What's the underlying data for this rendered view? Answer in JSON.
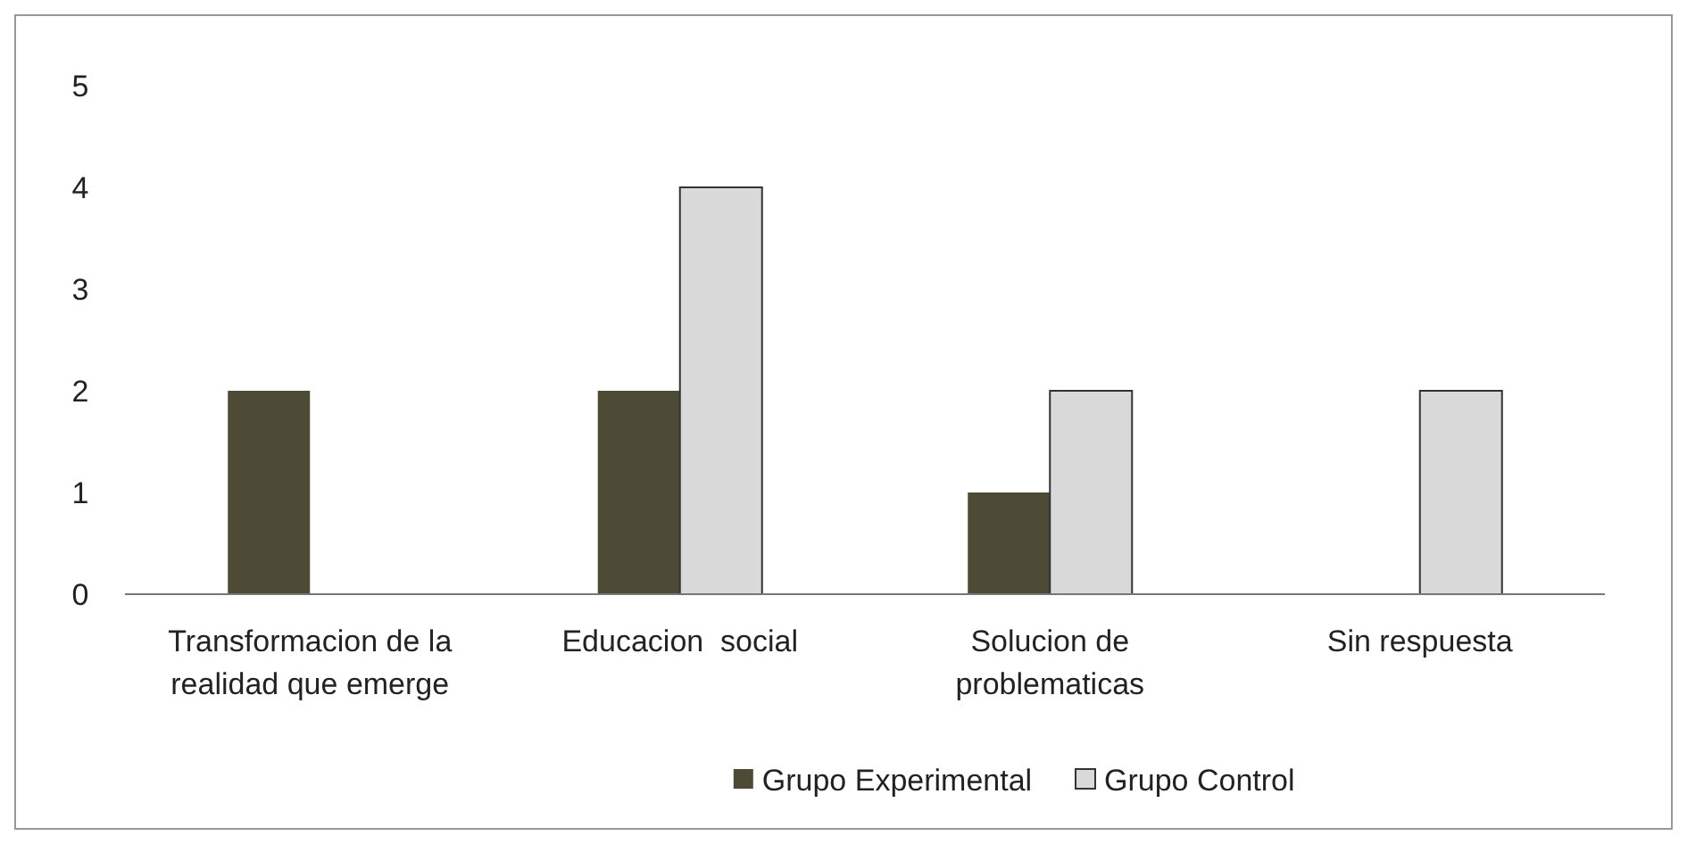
{
  "chart_data": {
    "type": "bar",
    "categories": [
      "Transformacion de la realidad que emerge",
      "Educacion  social",
      "Solucion de problematicas",
      "Sin respuesta"
    ],
    "series": [
      {
        "name": "Grupo Experimental",
        "color": "#4d4a36",
        "values": [
          2,
          2,
          1,
          0
        ]
      },
      {
        "name": "Grupo Control",
        "color": "#d9d9d9",
        "values": [
          0,
          4,
          2,
          2
        ]
      }
    ],
    "ylim": [
      0,
      5
    ],
    "yticks": [
      0,
      1,
      2,
      3,
      4,
      5
    ],
    "grid": false,
    "legend": "bottom"
  }
}
